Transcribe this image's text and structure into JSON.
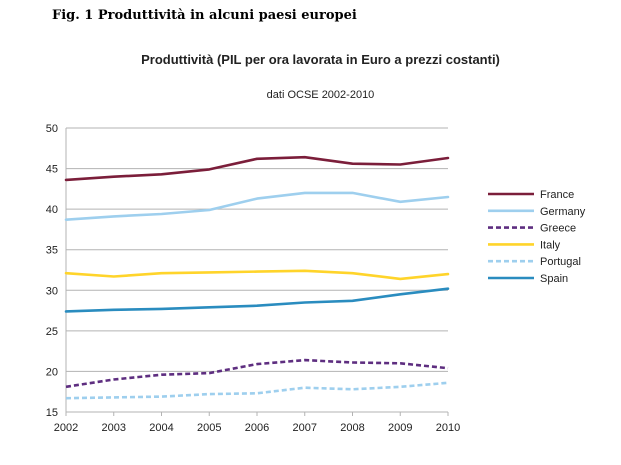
{
  "figure_caption": "Fig. 1 Produttività in alcuni paesi europei",
  "chart_data": {
    "type": "line",
    "title": "Produttività (PIL per ora lavorata in Euro a prezzi costanti)",
    "subtitle": "dati OCSE 2002-2010",
    "xlabel": "",
    "ylabel": "",
    "x": [
      "2002",
      "2003",
      "2004",
      "2005",
      "2006",
      "2007",
      "2008",
      "2009",
      "2010"
    ],
    "ylim": [
      15,
      50
    ],
    "yticks": [
      15,
      20,
      25,
      30,
      35,
      40,
      45,
      50
    ],
    "grid": true,
    "legend_position": "right",
    "series": [
      {
        "name": "France",
        "color": "#7b1e3a",
        "dashed": false,
        "values": [
          43.6,
          44.0,
          44.3,
          44.9,
          46.2,
          46.4,
          45.6,
          45.5,
          46.3
        ]
      },
      {
        "name": "Germany",
        "color": "#9ecfee",
        "dashed": false,
        "values": [
          38.7,
          39.1,
          39.4,
          39.9,
          41.3,
          42.0,
          42.0,
          40.9,
          41.5
        ]
      },
      {
        "name": "Greece",
        "color": "#5e2e80",
        "dashed": true,
        "values": [
          18.1,
          19.0,
          19.6,
          19.8,
          20.9,
          21.4,
          21.1,
          21.0,
          20.4
        ]
      },
      {
        "name": "Italy",
        "color": "#ffd42a",
        "dashed": false,
        "values": [
          32.1,
          31.7,
          32.1,
          32.2,
          32.3,
          32.4,
          32.1,
          31.4,
          32.0
        ]
      },
      {
        "name": "Portugal",
        "color": "#9ecfee",
        "dashed": true,
        "values": [
          16.7,
          16.8,
          16.9,
          17.2,
          17.3,
          18.0,
          17.8,
          18.1,
          18.6
        ]
      },
      {
        "name": "Spain",
        "color": "#2a8cbf",
        "dashed": false,
        "values": [
          27.4,
          27.6,
          27.7,
          27.9,
          28.1,
          28.5,
          28.7,
          29.5,
          30.2
        ]
      }
    ]
  }
}
